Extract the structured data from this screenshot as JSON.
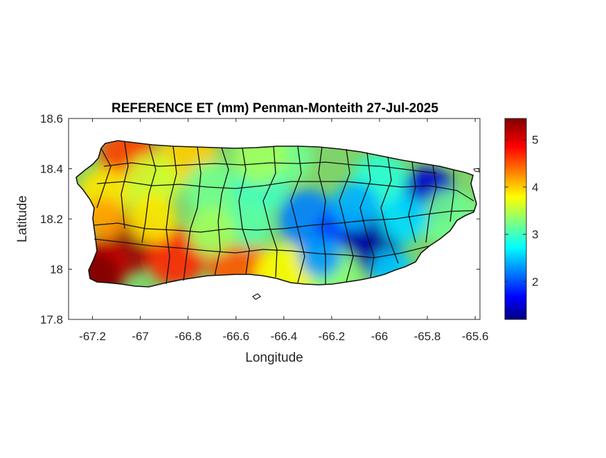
{
  "figure": {
    "title": "REFERENCE ET (mm) Penman-Monteith 27-Jul-2025",
    "xlabel": "Longitude",
    "ylabel": "Latitude"
  },
  "map": {
    "type": "heatmap",
    "xlim": [
      -67.3,
      -65.58
    ],
    "ylim": [
      17.8,
      18.6
    ],
    "xticks": [
      "-67.2",
      "-67",
      "-66.8",
      "-66.6",
      "-66.4",
      "-66.2",
      "-66",
      "-65.8",
      "-65.6"
    ],
    "yticks": [
      "17.8",
      "18",
      "18.2",
      "18.4",
      "18.6"
    ],
    "colorbar": {
      "colormap": "jet",
      "range": [
        1.2,
        5.45
      ],
      "ticks": [
        "2",
        "3",
        "4",
        "5"
      ]
    },
    "colors": {
      "min": "#000080",
      "low": "#0040ff",
      "mid": "#00ffff",
      "midhigh": "#ffff00",
      "high": "#ff4000",
      "max": "#800000",
      "border": "#000000"
    }
  },
  "chart_data": {
    "type": "heatmap",
    "title": "REFERENCE ET (mm) Penman-Monteith 27-Jul-2025",
    "xlabel": "Longitude",
    "ylabel": "Latitude",
    "x_range": [
      -67.3,
      -65.58
    ],
    "y_range": [
      17.8,
      18.6
    ],
    "value_range": [
      1.2,
      5.45
    ],
    "regions": [
      {
        "lon": -67.05,
        "lat": 18.1,
        "value": 5.3
      },
      {
        "lon": -67.18,
        "lat": 18.0,
        "value": 5.1
      },
      {
        "lon": -67.2,
        "lat": 17.96,
        "value": 5.45
      },
      {
        "lon": -66.85,
        "lat": 18.05,
        "value": 4.7
      },
      {
        "lon": -66.6,
        "lat": 18.03,
        "value": 4.5
      },
      {
        "lon": -67.05,
        "lat": 18.45,
        "value": 4.6
      },
      {
        "lon": -66.8,
        "lat": 18.45,
        "value": 4.0
      },
      {
        "lon": -66.4,
        "lat": 18.45,
        "value": 3.2
      },
      {
        "lon": -66.3,
        "lat": 18.2,
        "value": 2.2
      },
      {
        "lon": -66.15,
        "lat": 18.13,
        "value": 1.9
      },
      {
        "lon": -66.03,
        "lat": 18.1,
        "value": 1.3
      },
      {
        "lon": -65.8,
        "lat": 18.29,
        "value": 1.5
      },
      {
        "lon": -65.7,
        "lat": 18.2,
        "value": 3.2
      },
      {
        "lon": -66.2,
        "lat": 17.98,
        "value": 3.3
      },
      {
        "lon": -66.4,
        "lat": 17.98,
        "value": 3.8
      }
    ]
  }
}
